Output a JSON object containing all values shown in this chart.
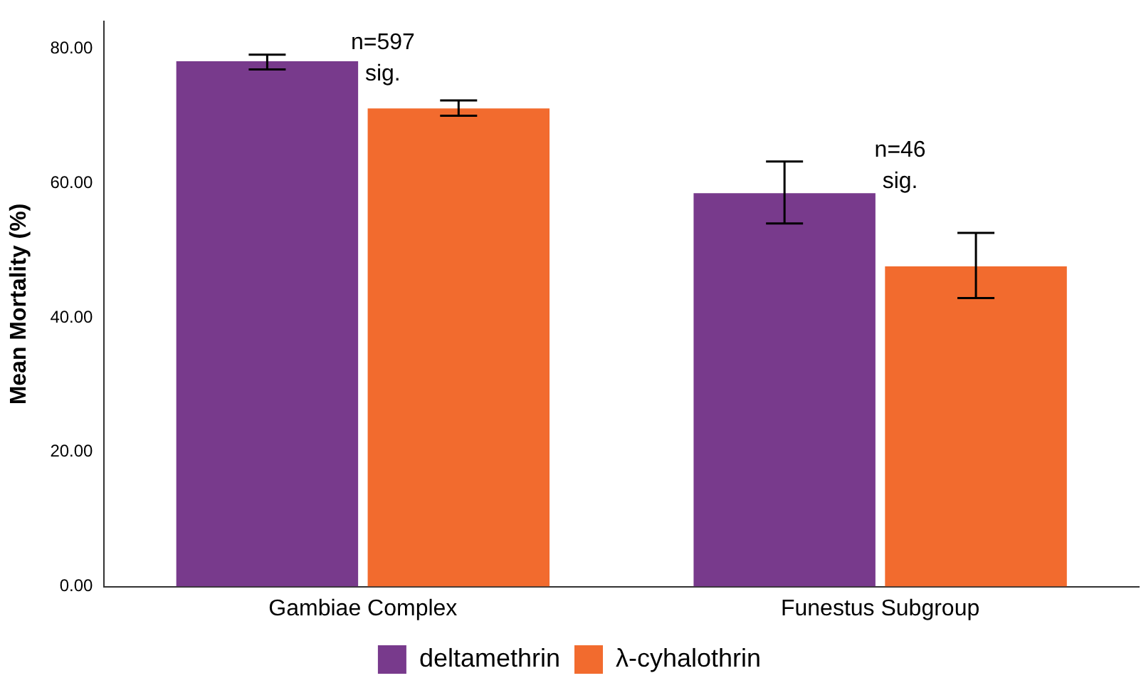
{
  "chart_data": {
    "type": "bar",
    "ylabel": "Mean Mortality (%)",
    "categories": [
      "Gambiae Complex",
      "Funestus Subgroup"
    ],
    "series": [
      {
        "name": "deltamethrin",
        "color": "#783a8c",
        "values": [
          78.1,
          58.5
        ],
        "errors": [
          [
            76.9,
            79.1
          ],
          [
            54.0,
            63.2
          ]
        ]
      },
      {
        "name": "λ-cyhalothrin",
        "color": "#f26b2e",
        "values": [
          71.1,
          47.6
        ],
        "errors": [
          [
            70.0,
            72.3
          ],
          [
            42.9,
            52.6
          ]
        ]
      }
    ],
    "ylim": [
      0,
      84
    ],
    "yticks": [
      {
        "value": 0,
        "label": "0.00"
      },
      {
        "value": 20,
        "label": "20.00"
      },
      {
        "value": 40,
        "label": "40.00"
      },
      {
        "value": 60,
        "label": "60.00"
      },
      {
        "value": 80,
        "label": "80.00"
      }
    ],
    "annotations": [
      "n=597",
      "sig.",
      "n=46",
      "sig."
    ],
    "grid": false,
    "legend": "bottom"
  }
}
